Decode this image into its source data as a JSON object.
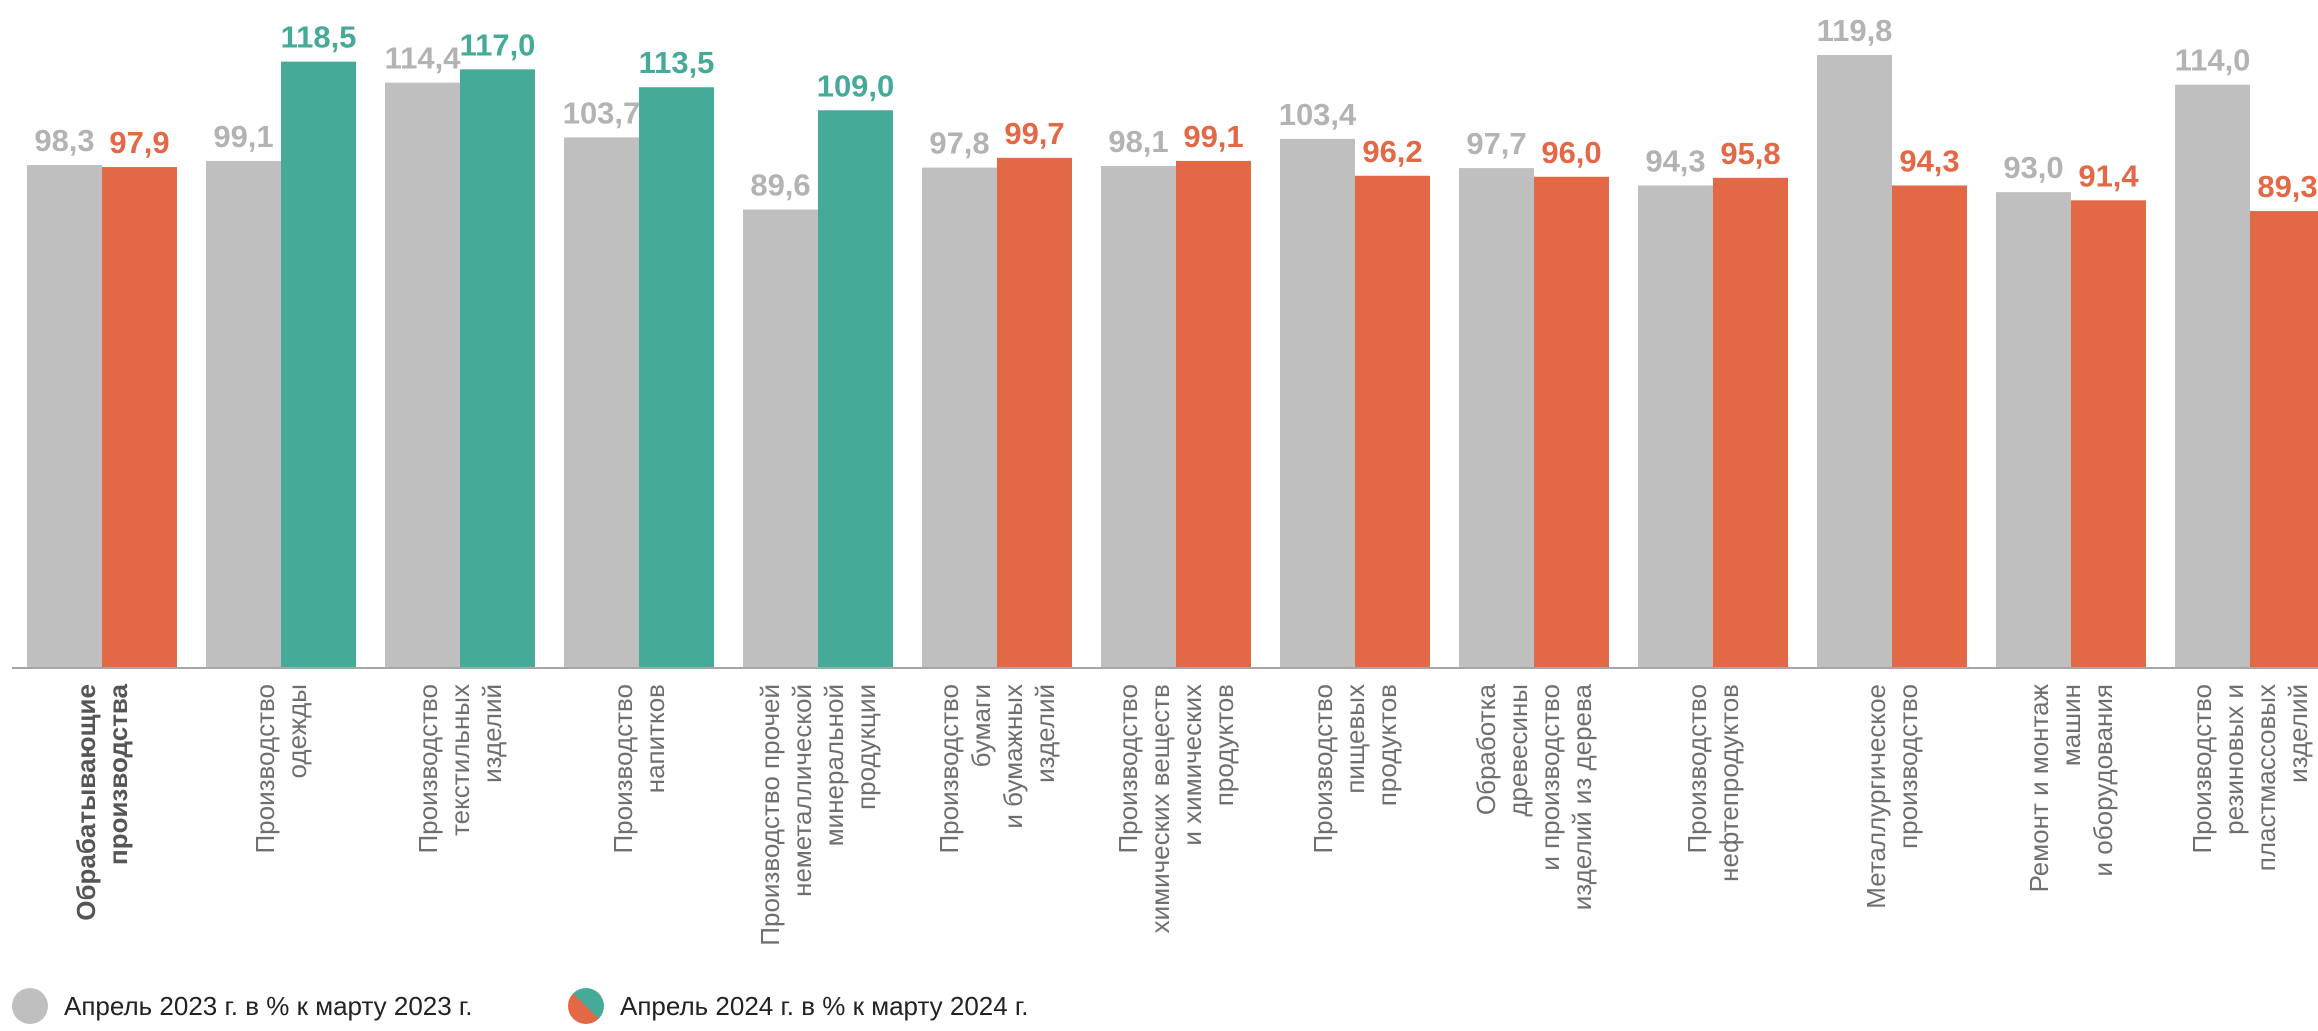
{
  "chart_data": {
    "type": "bar",
    "categories": [
      [
        "Обрабатывающие",
        "производства"
      ],
      [
        "Производство",
        "одежды"
      ],
      [
        "Производство",
        "текстильных",
        "изделий"
      ],
      [
        "Производство",
        "напитков"
      ],
      [
        "Производство прочей",
        "неметаллической",
        "минеральной",
        "продукции"
      ],
      [
        "Производство",
        "бумаги",
        "и бумажных",
        "изделий"
      ],
      [
        "Производство",
        "химических веществ",
        "и химических",
        "продуктов"
      ],
      [
        "Производство",
        "пищевых",
        "продуктов"
      ],
      [
        "Обработка",
        "древесины",
        "и производство",
        "изделий из дерева"
      ],
      [
        "Производство",
        "нефтепродуктов"
      ],
      [
        "Металлургическое",
        "производство"
      ],
      [
        "Ремонт и монтаж",
        "машин",
        "и оборудования"
      ],
      [
        "Производство",
        "резиновых и",
        "пластмассовых",
        "изделий"
      ]
    ],
    "bold_categories": [
      0
    ],
    "series": [
      {
        "name": "Апрель 2023 г. в % к марту 2023 г.",
        "values": [
          98.3,
          99.1,
          114.4,
          103.7,
          89.6,
          97.8,
          98.1,
          103.4,
          97.7,
          94.3,
          119.8,
          93.0,
          114.0
        ],
        "labels": [
          "98,3",
          "99,1",
          "114,4",
          "103,7",
          "89,6",
          "97,8",
          "98,1",
          "103,4",
          "97,7",
          "94,3",
          "119,8",
          "93,0",
          "114,0"
        ]
      },
      {
        "name": "Апрель 2024 г. в % к марту 2024 г.",
        "values": [
          97.9,
          118.5,
          117.0,
          113.5,
          109.0,
          99.7,
          99.1,
          96.2,
          96.0,
          95.8,
          94.3,
          91.4,
          89.3
        ],
        "labels": [
          "97,9",
          "118,5",
          "117,0",
          "113,5",
          "109,0",
          "99,7",
          "99,1",
          "96,2",
          "96,0",
          "95,8",
          "94,3",
          "91,4",
          "89,3"
        ]
      }
    ],
    "ylim": [
      0,
      130
    ],
    "colors": {
      "gray": "#bfbfbf",
      "gray_label": "#b3b3b3",
      "green": "#45aa98",
      "orange": "#e36845",
      "axis": "#a6a6a6"
    },
    "legend_position": "bottom-left"
  },
  "legend": {
    "item_2023": "Апрель 2023 г. в % к марту 2023 г.",
    "item_2024": "Апрель 2024 г. в % к марту 2024 г."
  }
}
